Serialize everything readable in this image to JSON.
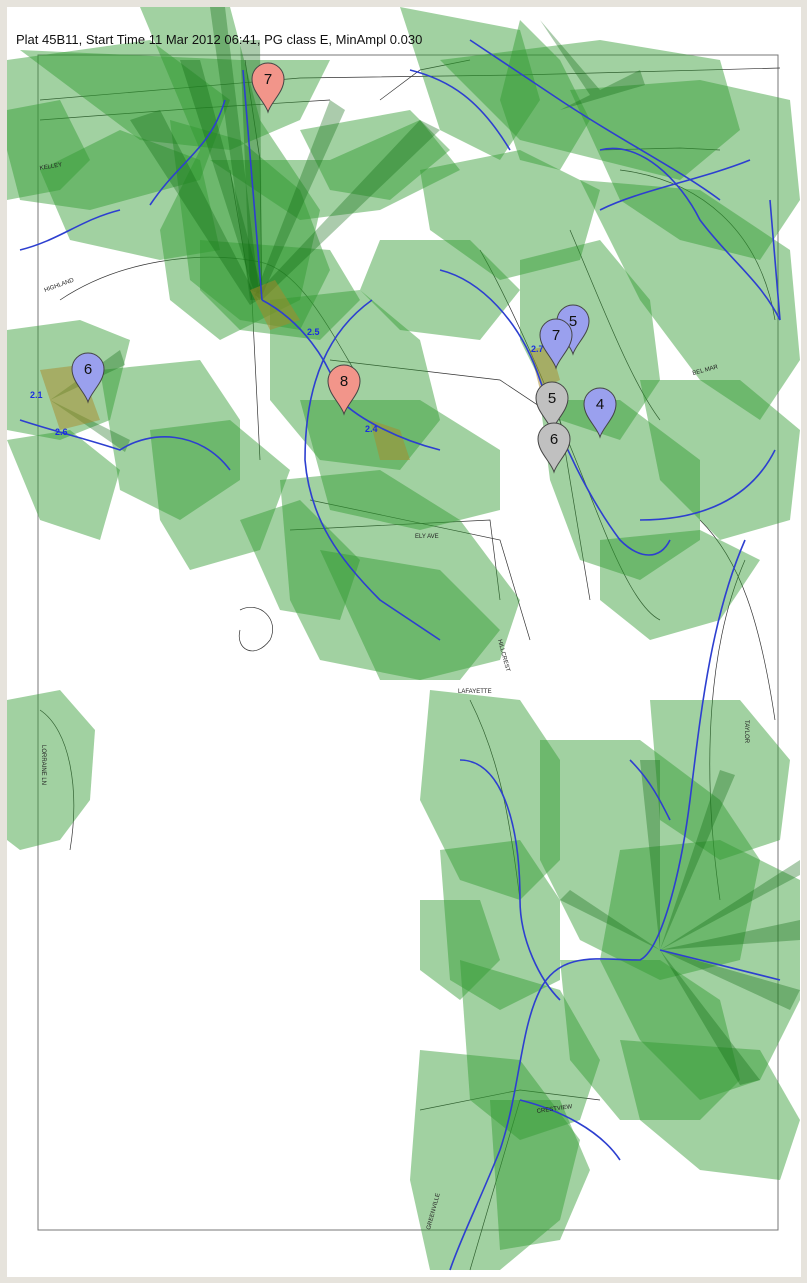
{
  "header": {
    "title": "Plat 45B11, Start Time 11 Mar 2012 06:41, PG class E, MinAmpl 0.030"
  },
  "colors": {
    "plume_fill": "#2f9a2f",
    "plume_dark": "#0e6a10",
    "pipeline": "#2d3fd0",
    "parcel_lines": "#333333",
    "pin_red": "#f2958a",
    "pin_blue": "#9aa0ee",
    "pin_gray": "#c0c0c0"
  },
  "street_labels": {
    "highland": "HIGHLAND",
    "lafayette": "LAFAYETTE",
    "crestview": "CRESTVIEW",
    "lorraine": "LORRAINE LN",
    "taylor": "TAYLOR",
    "kelley": "KELLEY",
    "hillcrest": "HILLCREST",
    "bel_mar": "BEL MAR",
    "greenville": "GREENVILLE",
    "ely_ave": "ELY AVE"
  },
  "small_labels": {
    "s1": "2.1",
    "s2": "2.6",
    "s3": "2.5",
    "s4": "2.4",
    "s5": "2.7"
  },
  "markers": [
    {
      "id": "pin-red-7",
      "label": "7",
      "color": "red"
    },
    {
      "id": "pin-red-8",
      "label": "8",
      "color": "red"
    },
    {
      "id": "pin-blue-6",
      "label": "6",
      "color": "blue"
    },
    {
      "id": "pin-blue-5",
      "label": "5",
      "color": "blue"
    },
    {
      "id": "pin-blue-7",
      "label": "7",
      "color": "blue"
    },
    {
      "id": "pin-blue-4",
      "label": "4",
      "color": "blue"
    },
    {
      "id": "pin-gray-5",
      "label": "5",
      "color": "gray"
    },
    {
      "id": "pin-gray-6",
      "label": "6",
      "color": "gray"
    }
  ]
}
